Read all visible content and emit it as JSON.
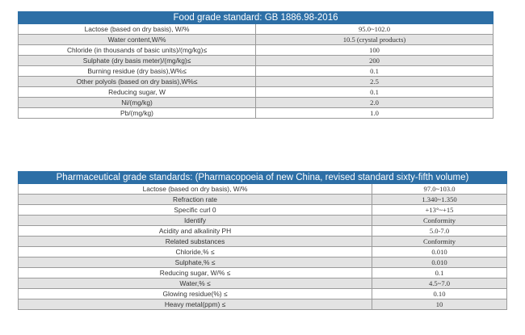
{
  "food": {
    "title": "Food grade standard: GB 1886.98-2016",
    "rows": [
      {
        "item": "Lactose (based on dry basis), W/%",
        "value": "95.0~102.0"
      },
      {
        "item": "Water content,W/%",
        "value": "10.5 (crystal products)"
      },
      {
        "item": "Chloride (in thousands of basic units)/(mg/kg)≤",
        "value": "100"
      },
      {
        "item": "Sulphate (dry basis meter)/(mg/kg)≤",
        "value": "200"
      },
      {
        "item": "Burning residue (dry basis),W%≤",
        "value": "0.1"
      },
      {
        "item": "Other polyols (based on dry basis),W%≤",
        "value": "2.5"
      },
      {
        "item": "Reducing sugar, W",
        "value": "0.1"
      },
      {
        "item": "Ni/(mg/kg)",
        "value": "2.0"
      },
      {
        "item": "Pb/(mg/kg)",
        "value": "1.0"
      }
    ]
  },
  "pharma": {
    "title": "Pharmaceutical grade standards: (Pharmacopoeia of new China, revised standard sixty-fifth volume)",
    "rows": [
      {
        "item": "Lactose (based on dry basis), W/%",
        "value": "97.0~103.0"
      },
      {
        "item": "Refraction rate",
        "value": "1.340~1.350"
      },
      {
        "item": "Specific curl 0",
        "value": "+13°~+15"
      },
      {
        "item": "Identify",
        "value": "Conformity"
      },
      {
        "item": "Acidity and alkalinity PH",
        "value": "5.0-7.0"
      },
      {
        "item": "Related substances",
        "value": "Conformity"
      },
      {
        "item": "Chloride,% ≤",
        "value": "0.010"
      },
      {
        "item": "Sulphate,% ≤",
        "value": "0.010"
      },
      {
        "item": "Reducing sugar, W/% ≤",
        "value": "0.1"
      },
      {
        "item": "Water,% ≤",
        "value": "4.5~7.0"
      },
      {
        "item": "Glowing residue(%) ≤",
        "value": "0.10"
      },
      {
        "item": "Heavy metal(ppm) ≤",
        "value": "10"
      }
    ]
  }
}
